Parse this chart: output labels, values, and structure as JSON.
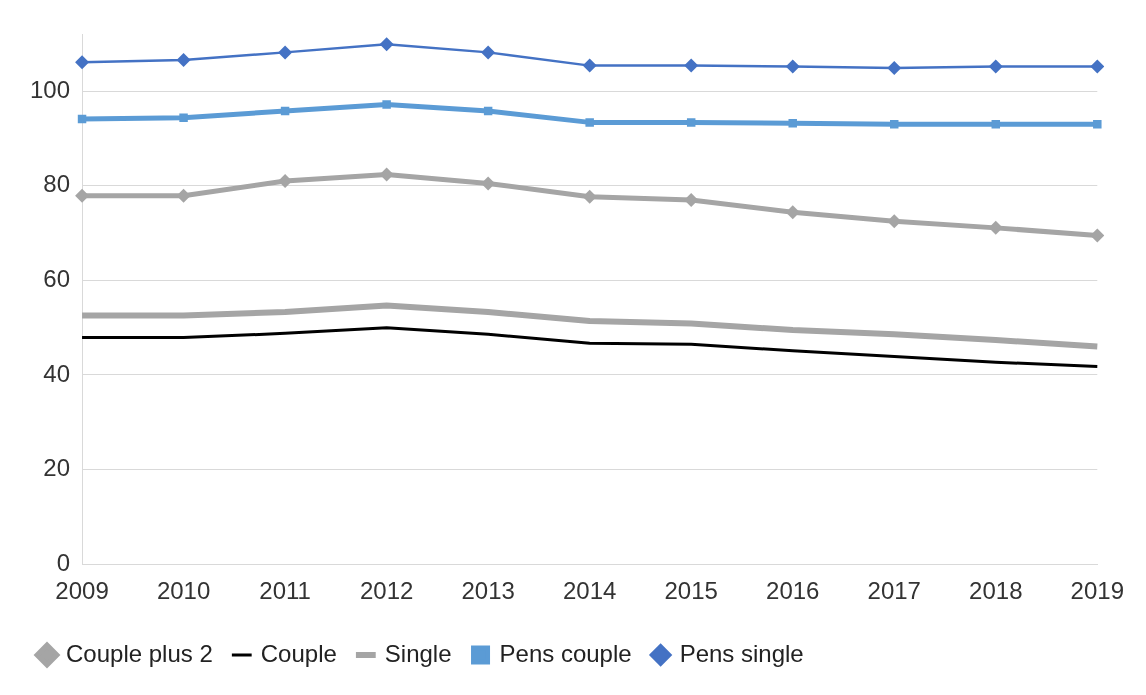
{
  "chart_data": {
    "type": "line",
    "categories": [
      "2009",
      "2010",
      "2011",
      "2012",
      "2013",
      "2014",
      "2015",
      "2016",
      "2017",
      "2018",
      "2019"
    ],
    "series": [
      {
        "name": "Couple plus 2",
        "color": "#a5a5a5",
        "marker": "diamond",
        "values": [
          77.9,
          77.9,
          81.0,
          82.4,
          80.5,
          77.7,
          77.0,
          74.4,
          72.5,
          71.1,
          69.5
        ]
      },
      {
        "name": "Couple",
        "color": "#000000",
        "marker": "none",
        "values": [
          47.9,
          47.9,
          48.8,
          50.0,
          48.6,
          46.7,
          46.5,
          45.1,
          43.9,
          42.7,
          41.8
        ]
      },
      {
        "name": "Single",
        "color": "#a5a5a5",
        "marker": "none",
        "values": [
          52.6,
          52.6,
          53.3,
          54.7,
          53.3,
          51.4,
          50.9,
          49.5,
          48.6,
          47.4,
          46.0
        ]
      },
      {
        "name": "Pens couple",
        "color": "#5b9bd5",
        "marker": "square",
        "values": [
          94.1,
          94.4,
          95.8,
          97.2,
          95.8,
          93.4,
          93.4,
          93.2,
          93.0,
          93.0,
          93.0
        ]
      },
      {
        "name": "Pens single",
        "color": "#4472c4",
        "marker": "diamond",
        "values": [
          106.1,
          106.6,
          108.2,
          109.9,
          108.2,
          105.4,
          105.4,
          105.2,
          104.9,
          105.2,
          105.2
        ]
      }
    ],
    "ylim": [
      0,
      112
    ],
    "yticks": [
      0,
      20,
      40,
      60,
      80,
      100
    ],
    "grid": "y",
    "legend": "bottom",
    "line_style": "solid"
  }
}
